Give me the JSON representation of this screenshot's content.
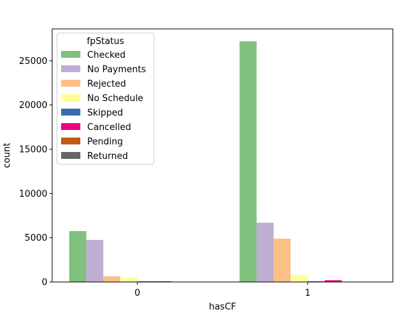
{
  "chart_data": {
    "type": "bar",
    "title": "",
    "xlabel": "hasCF",
    "ylabel": "count",
    "categories": [
      "0",
      "1"
    ],
    "ylim": [
      0,
      28600
    ],
    "yticks": [
      0,
      5000,
      10000,
      15000,
      20000,
      25000
    ],
    "ytick_labels": [
      "0",
      "5000",
      "10000",
      "15000",
      "20000",
      "25000"
    ],
    "grid": false,
    "legend": {
      "title": "fpStatus",
      "position": "top-left"
    },
    "series": [
      {
        "name": "Checked",
        "color": "#7fc17e",
        "values": [
          5750,
          27200
        ]
      },
      {
        "name": "No Payments",
        "color": "#beaed4",
        "values": [
          4750,
          6700
        ]
      },
      {
        "name": "Rejected",
        "color": "#fdc086",
        "values": [
          650,
          4900
        ]
      },
      {
        "name": "No Schedule",
        "color": "#ffff99",
        "values": [
          550,
          800
        ]
      },
      {
        "name": "Skipped",
        "color": "#386cb0",
        "values": [
          80,
          80
        ]
      },
      {
        "name": "Cancelled",
        "color": "#f0027f",
        "values": [
          80,
          200
        ]
      },
      {
        "name": "Pending",
        "color": "#bf5b17",
        "values": [
          30,
          10
        ]
      },
      {
        "name": "Returned",
        "color": "#666666",
        "values": [
          20,
          10
        ]
      }
    ]
  }
}
